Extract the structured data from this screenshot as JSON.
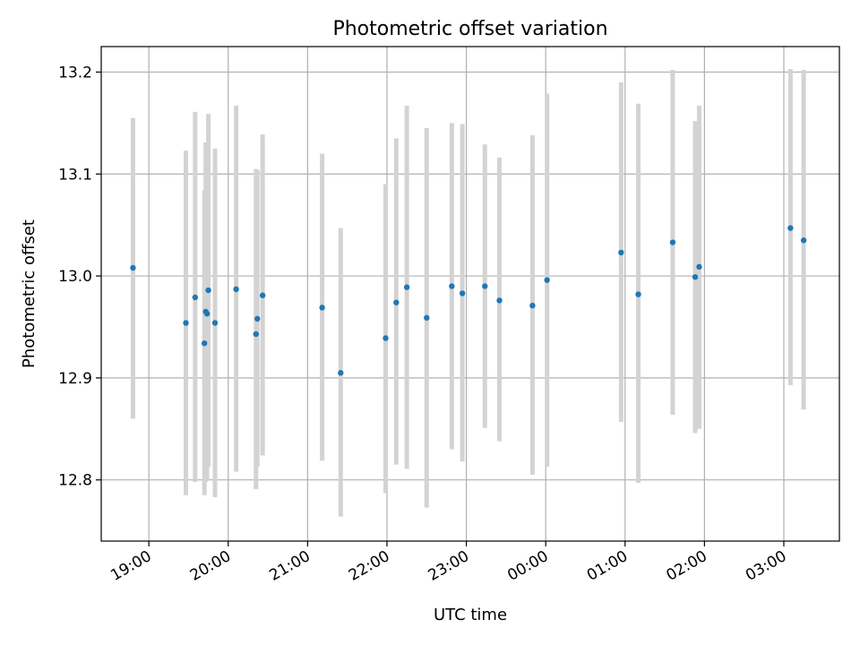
{
  "chart_data": {
    "type": "scatter",
    "title": "Photometric offset variation",
    "xlabel": "UTC time",
    "ylabel": "Photometric offset",
    "x_ticks": [
      "19:00",
      "20:00",
      "21:00",
      "22:00",
      "23:00",
      "00:00",
      "01:00",
      "02:00",
      "03:00"
    ],
    "y_ticks": [
      "12.8",
      "12.9",
      "13.0",
      "13.1",
      "13.2"
    ],
    "xlim_hours": [
      18.4,
      27.7
    ],
    "ylim": [
      12.74,
      13.225
    ],
    "grid": true,
    "marker_color": "#1f77b4",
    "errorbar_color": "#d3d3d3",
    "points": [
      {
        "time": "18:48",
        "y": 13.008,
        "low": 12.86,
        "high": 13.155
      },
      {
        "time": "19:28",
        "y": 12.954,
        "low": 12.785,
        "high": 13.123
      },
      {
        "time": "19:35",
        "y": 12.979,
        "low": 12.798,
        "high": 13.161
      },
      {
        "time": "19:42",
        "y": 12.934,
        "low": 12.785,
        "high": 13.084
      },
      {
        "time": "19:43",
        "y": 12.965,
        "low": 12.798,
        "high": 13.131
      },
      {
        "time": "19:44",
        "y": 12.963,
        "low": 12.8,
        "high": 13.126
      },
      {
        "time": "19:45",
        "y": 12.986,
        "low": 12.813,
        "high": 13.159
      },
      {
        "time": "19:50",
        "y": 12.954,
        "low": 12.783,
        "high": 13.125
      },
      {
        "time": "20:06",
        "y": 12.987,
        "low": 12.808,
        "high": 13.167
      },
      {
        "time": "20:21",
        "y": 12.943,
        "low": 12.791,
        "high": 13.105
      },
      {
        "time": "20:22",
        "y": 12.958,
        "low": 12.813,
        "high": 13.104
      },
      {
        "time": "20:26",
        "y": 12.981,
        "low": 12.824,
        "high": 13.139
      },
      {
        "time": "21:11",
        "y": 12.969,
        "low": 12.819,
        "high": 13.12
      },
      {
        "time": "21:25",
        "y": 12.905,
        "low": 12.764,
        "high": 13.047
      },
      {
        "time": "21:59",
        "y": 12.939,
        "low": 12.787,
        "high": 13.09
      },
      {
        "time": "22:07",
        "y": 12.974,
        "low": 12.815,
        "high": 13.135
      },
      {
        "time": "22:15",
        "y": 12.989,
        "low": 12.811,
        "high": 13.167
      },
      {
        "time": "22:30",
        "y": 12.959,
        "low": 12.773,
        "high": 13.145
      },
      {
        "time": "22:49",
        "y": 12.99,
        "low": 12.83,
        "high": 13.15
      },
      {
        "time": "22:57",
        "y": 12.983,
        "low": 12.818,
        "high": 13.149
      },
      {
        "time": "23:14",
        "y": 12.99,
        "low": 12.851,
        "high": 13.129
      },
      {
        "time": "23:25",
        "y": 12.976,
        "low": 12.838,
        "high": 13.116
      },
      {
        "time": "23:50",
        "y": 12.971,
        "low": 12.805,
        "high": 13.138
      },
      {
        "time": "00:01",
        "y": 12.996,
        "low": 12.813,
        "high": 13.179
      },
      {
        "time": "00:57",
        "y": 13.023,
        "low": 12.857,
        "high": 13.19
      },
      {
        "time": "01:10",
        "y": 12.982,
        "low": 12.797,
        "high": 13.169
      },
      {
        "time": "01:36",
        "y": 13.033,
        "low": 12.864,
        "high": 13.202
      },
      {
        "time": "01:53",
        "y": 12.999,
        "low": 12.846,
        "high": 13.152
      },
      {
        "time": "01:56",
        "y": 13.009,
        "low": 12.85,
        "high": 13.167
      },
      {
        "time": "03:05",
        "y": 13.047,
        "low": 12.893,
        "high": 13.203
      },
      {
        "time": "03:15",
        "y": 13.035,
        "low": 12.869,
        "high": 13.202
      }
    ]
  }
}
